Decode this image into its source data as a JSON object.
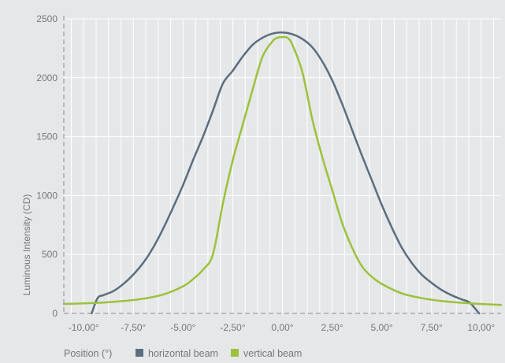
{
  "chart_data": {
    "type": "line",
    "xlabel": "Position (°)",
    "ylabel": "Luminous Intensity (CD)",
    "xlim": [
      -11,
      11
    ],
    "ylim": [
      0,
      2500
    ],
    "x_ticks": [
      -10,
      -7.5,
      -5,
      -2.5,
      0,
      2.5,
      5,
      7.5,
      10
    ],
    "x_tick_labels": [
      "-10,00°",
      "-7,50°",
      "-5,00°",
      "-2,50°",
      "0,00°",
      "2,50°",
      "5,00°",
      "7,50°",
      "10,00°"
    ],
    "y_ticks": [
      0,
      500,
      1000,
      1500,
      2000,
      2500
    ],
    "y_tick_labels": [
      "0",
      "500",
      "1000",
      "1500",
      "2000",
      "2500"
    ],
    "grid": true,
    "legend_position": "bottom",
    "series": [
      {
        "name": "horizontal beam",
        "color": "#5a6e80",
        "x": [
          -9.6,
          -9.3,
          -9.0,
          -8.5,
          -8.0,
          -7.5,
          -7.0,
          -6.5,
          -6.0,
          -5.5,
          -5.0,
          -4.5,
          -4.0,
          -3.5,
          -3.0,
          -2.5,
          -2.0,
          -1.5,
          -1.0,
          -0.5,
          0.0,
          0.5,
          1.0,
          1.5,
          2.0,
          2.5,
          3.0,
          3.5,
          4.0,
          4.5,
          5.0,
          5.5,
          6.0,
          6.5,
          7.0,
          7.5,
          8.0,
          8.5,
          9.0,
          9.4,
          9.7,
          9.9
        ],
        "y": [
          0,
          130,
          155,
          190,
          250,
          330,
          430,
          560,
          720,
          900,
          1090,
          1300,
          1500,
          1720,
          1950,
          2060,
          2180,
          2280,
          2340,
          2375,
          2385,
          2370,
          2330,
          2260,
          2140,
          1980,
          1780,
          1560,
          1340,
          1130,
          920,
          730,
          560,
          430,
          330,
          260,
          200,
          155,
          120,
          95,
          40,
          0
        ]
      },
      {
        "name": "vertical beam",
        "color": "#9bc23c",
        "x": [
          -11.0,
          -10.0,
          -9.0,
          -8.0,
          -7.0,
          -6.0,
          -5.0,
          -4.5,
          -4.0,
          -3.5,
          -3.0,
          -2.5,
          -2.0,
          -1.5,
          -1.0,
          -0.5,
          -0.25,
          0.0,
          0.25,
          0.5,
          1.0,
          1.5,
          2.0,
          2.5,
          3.0,
          3.5,
          4.0,
          4.5,
          5.0,
          6.0,
          7.0,
          8.0,
          9.0,
          10.0,
          11.0
        ],
        "y": [
          80,
          85,
          92,
          105,
          125,
          160,
          230,
          290,
          370,
          500,
          930,
          1300,
          1600,
          1900,
          2180,
          2310,
          2340,
          2345,
          2340,
          2280,
          2050,
          1650,
          1330,
          1050,
          770,
          560,
          400,
          310,
          250,
          170,
          130,
          105,
          90,
          80,
          72
        ]
      }
    ]
  }
}
